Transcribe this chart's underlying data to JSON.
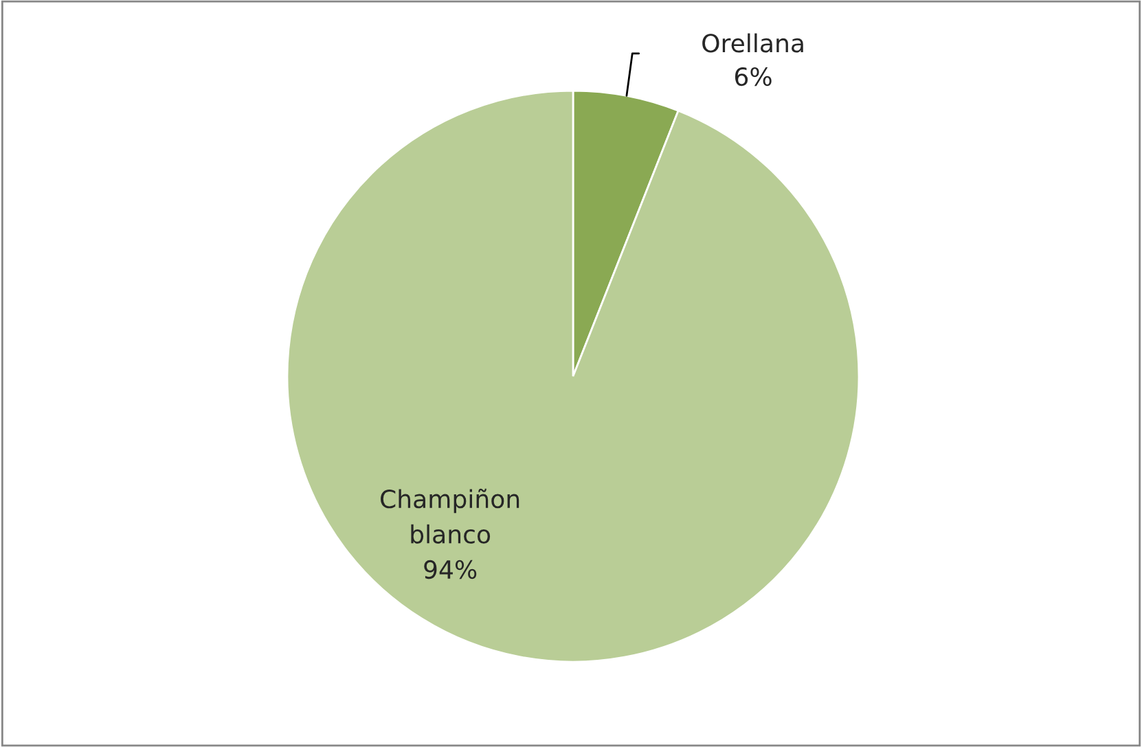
{
  "chart_data": {
    "type": "pie",
    "categories": [
      "Orellana",
      "Champiñon blanco"
    ],
    "values": [
      6,
      94
    ],
    "value_labels": [
      "6%",
      "94%"
    ],
    "colors": [
      "#8aa953",
      "#b9cd96"
    ]
  }
}
